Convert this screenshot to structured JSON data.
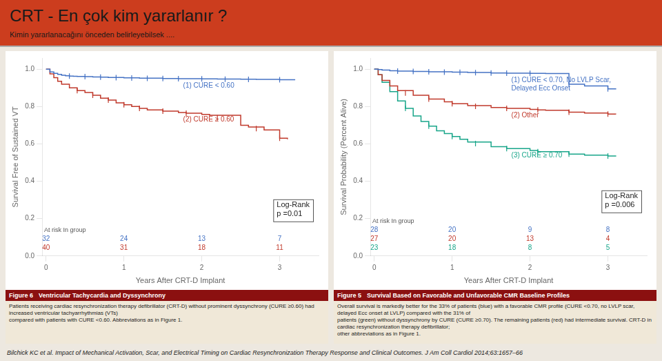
{
  "title": "CRT - En çok kim yararlanır ?",
  "subtitle": "Kimin yararlanacağını önceden belirleyebilsek ....",
  "annotations": [
    "Bilchick KC et al. Impact of Mechanical Activation, Scar, and Electrical Timing on Cardiac Resynchronization Therapy Response and Clinical Outcomes. J Am Coll Cardiol 2014;63:1657–66"
  ],
  "chart_data": [
    {
      "type": "step",
      "title": "Figure 6",
      "subtitle": "Ventricular Tachycardia and Dyssynchrony",
      "caption": "Patients receiving cardiac resynchronization therapy defibrillator (CRT-D) without prominent dyssynchrony (CURE ≥0.60) had increased ventricular tachyarrhythmias (VTs)\ncompared with patients with CURE <0.60. Abbreviations as in Figure 1.",
      "annotations": [
        "Log-Rank\np =0.01"
      ],
      "x_label": "Years After CRT-D Implant",
      "y_label": "Survival Free of Sustained VT",
      "xlim": [
        -0.05,
        3.5
      ],
      "ylim": [
        0.0,
        1.06
      ],
      "xticks": [
        0,
        1,
        2,
        3
      ],
      "yticks": [
        {
          "value": 0.0,
          "label": "0.0"
        },
        0.2,
        0.4,
        0.6,
        0.8,
        {
          "value": 1.0,
          "label": "1.0"
        }
      ],
      "grid": false,
      "at_risk_label": "At risk In group",
      "at_risk_x": [
        0,
        1,
        2,
        3
      ],
      "series": [
        {
          "name": "(1) CURE < 0.60",
          "color": "#4472c4",
          "marker": "|",
          "x": [
            0,
            0.05,
            0.1,
            0.15,
            0.2,
            0.25,
            0.3,
            0.35,
            0.4,
            0.5,
            0.6,
            0.7,
            0.8,
            1.0,
            1.2,
            1.5,
            1.7,
            2.0,
            2.2,
            2.5,
            2.7,
            3.0,
            3.2
          ],
          "values": [
            1.0,
            0.985,
            0.978,
            0.972,
            0.968,
            0.965,
            0.963,
            0.962,
            0.961,
            0.96,
            0.958,
            0.957,
            0.956,
            0.954,
            0.952,
            0.95,
            0.949,
            0.948,
            0.947,
            0.946,
            0.945,
            0.944,
            0.944
          ],
          "censored_x": [
            0.3,
            0.5,
            0.7,
            0.9,
            1.1,
            1.3,
            1.5,
            1.7,
            2.0,
            2.3,
            2.6,
            3.0
          ],
          "censored_y": [
            0.963,
            0.96,
            0.957,
            0.955,
            0.953,
            0.9513333333,
            0.95,
            0.949,
            0.948,
            0.9466666667,
            0.9455,
            0.944
          ],
          "at_risk": [
            "32",
            "24",
            "13",
            "7"
          ]
        },
        {
          "name": "(2) CURE ≥ 0.60",
          "color": "#c0392b",
          "marker": "|",
          "x": [
            0,
            0.05,
            0.1,
            0.15,
            0.2,
            0.3,
            0.4,
            0.5,
            0.6,
            0.7,
            0.8,
            0.9,
            1.0,
            1.1,
            1.2,
            1.3,
            1.5,
            1.7,
            1.8,
            2.0,
            2.1,
            2.5,
            2.6,
            2.8,
            3.0,
            3.1
          ],
          "values": [
            1.0,
            0.975,
            0.955,
            0.935,
            0.92,
            0.9,
            0.885,
            0.875,
            0.86,
            0.845,
            0.835,
            0.82,
            0.81,
            0.8,
            0.79,
            0.782,
            0.775,
            0.768,
            0.764,
            0.758,
            0.753,
            0.7,
            0.69,
            0.675,
            0.63,
            0.625
          ],
          "censored_x": [
            0.4,
            0.6,
            0.8,
            1.0,
            1.2,
            1.5,
            1.8,
            2.2,
            2.7,
            3.0
          ],
          "censored_y": [
            0.885,
            0.86,
            0.835,
            0.81,
            0.79,
            0.775,
            0.764,
            0.73975,
            0.6825,
            0.63
          ],
          "at_risk": [
            "40",
            "31",
            "18",
            "11"
          ]
        }
      ]
    },
    {
      "type": "step",
      "title": "Figure 5",
      "subtitle": "Survival Based on Favorable and Unfavorable CMR Baseline Profiles",
      "caption": "Overall survival is markedly better for the 33% of patients (blue) with a favorable CMR profile (CURE <0.70, no LVLP scar, delayed Ecc onset at LVLP) compared with the 31% of\npatients (green) without dyssynchrony by CURE (CURE ≥0.70). The remaining patients (red) had intermediate survival. CRT-D in cardiac resynchronization therapy defibrillator;\nother abbreviations as in Figure 1.",
      "annotations": [
        "Log-Rank\np =0.006"
      ],
      "x_label": "Years After CRT-D Implant",
      "y_label": "Survival Probability (Percent Alive)",
      "xlim": [
        -0.05,
        3.5
      ],
      "ylim": [
        0.0,
        1.06
      ],
      "xticks": [
        0,
        1,
        2,
        3
      ],
      "yticks": [
        {
          "value": 0.0,
          "label": "0.0"
        },
        0.2,
        0.4,
        0.6,
        0.8,
        {
          "value": 1.0,
          "label": "1.0"
        }
      ],
      "grid": false,
      "at_risk_label": "At risk In group",
      "at_risk_x": [
        0,
        1,
        2,
        3
      ],
      "series": [
        {
          "name": "(1) CURE < 0.70, No LVLP Scar,\nDelayed Ecc Onset",
          "color": "#4472c4",
          "marker": "|",
          "x": [
            0,
            0.05,
            0.1,
            0.2,
            0.3,
            0.5,
            0.7,
            1.0,
            1.2,
            1.5,
            1.7,
            2.0,
            2.2,
            2.5,
            2.7,
            3.0,
            3.1
          ],
          "values": [
            1.0,
            0.998,
            0.995,
            0.992,
            0.99,
            0.988,
            0.986,
            0.984,
            0.982,
            0.98,
            0.979,
            0.978,
            0.977,
            0.92,
            0.91,
            0.895,
            0.892
          ],
          "censored_x": [
            0.3,
            0.5,
            0.7,
            0.9,
            1.1,
            1.3,
            1.5,
            1.7,
            2.0,
            2.5,
            3.0
          ],
          "censored_y": [
            0.99,
            0.988,
            0.986,
            0.9846666667,
            0.983,
            0.9813333333,
            0.98,
            0.979,
            0.978,
            0.92,
            0.895
          ],
          "at_risk": [
            "28",
            "20",
            "9",
            "8"
          ]
        },
        {
          "name": "(2) Other",
          "color": "#c0392b",
          "marker": "|",
          "x": [
            0,
            0.05,
            0.1,
            0.2,
            0.3,
            0.5,
            0.7,
            0.9,
            1.0,
            1.2,
            1.5,
            1.7,
            2.0,
            2.1,
            2.2,
            2.5,
            2.7,
            3.0,
            3.1
          ],
          "values": [
            1.0,
            0.97,
            0.94,
            0.91,
            0.885,
            0.86,
            0.84,
            0.825,
            0.815,
            0.805,
            0.795,
            0.79,
            0.785,
            0.782,
            0.78,
            0.77,
            0.765,
            0.76,
            0.758
          ],
          "censored_x": [
            0.4,
            0.7,
            1.0,
            1.3,
            1.7,
            2.1,
            2.5,
            3.0
          ],
          "censored_y": [
            0.8725,
            0.84,
            0.815,
            0.8016666667,
            0.79,
            0.782,
            0.77,
            0.76
          ],
          "at_risk": [
            "27",
            "20",
            "13",
            "4"
          ]
        },
        {
          "name": "(3) CURE ≥ 0.70",
          "color": "#17a589",
          "marker": "|",
          "x": [
            0,
            0.05,
            0.1,
            0.2,
            0.3,
            0.4,
            0.5,
            0.6,
            0.7,
            0.8,
            0.9,
            1.0,
            1.1,
            1.2,
            1.5,
            1.7,
            2.0,
            2.1,
            2.5,
            2.7,
            3.0,
            3.1
          ],
          "values": [
            1.0,
            0.97,
            0.93,
            0.88,
            0.83,
            0.79,
            0.75,
            0.72,
            0.695,
            0.67,
            0.655,
            0.64,
            0.625,
            0.61,
            0.585,
            0.575,
            0.565,
            0.558,
            0.545,
            0.54,
            0.535,
            0.532
          ],
          "censored_x": [
            0.4,
            0.7,
            1.0,
            1.3,
            1.7,
            2.1,
            2.5,
            3.0
          ],
          "censored_y": [
            0.79,
            0.695,
            0.64,
            0.6016666667,
            0.575,
            0.558,
            0.545,
            0.535
          ],
          "at_risk": [
            "23",
            "18",
            "8",
            "5"
          ]
        }
      ]
    }
  ]
}
